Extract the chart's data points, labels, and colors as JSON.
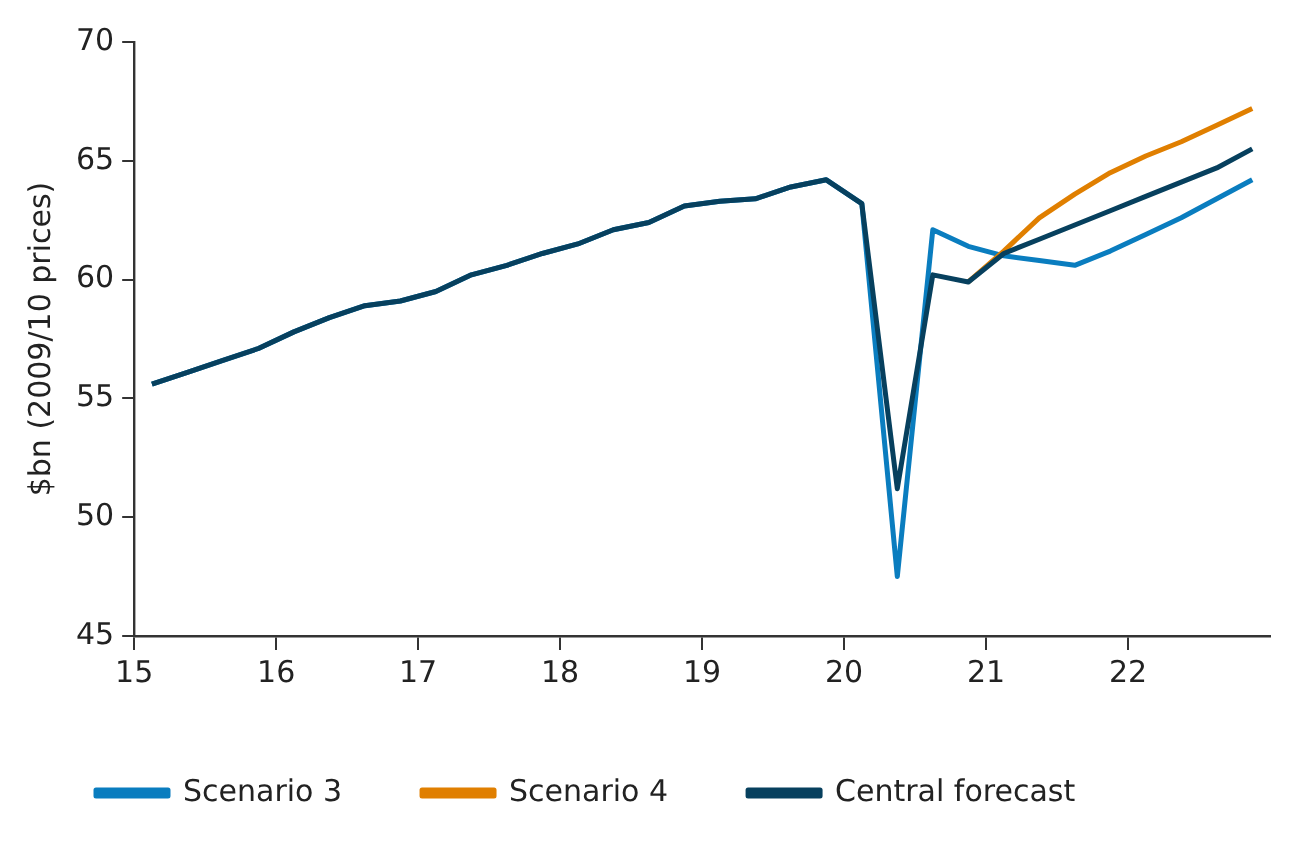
{
  "chart_data": {
    "type": "line",
    "ylabel": "$bn (2009/10 prices)",
    "x": [
      15.125,
      15.375,
      15.625,
      15.875,
      16.125,
      16.375,
      16.625,
      16.875,
      17.125,
      17.375,
      17.625,
      17.875,
      18.125,
      18.375,
      18.625,
      18.875,
      19.125,
      19.375,
      19.625,
      19.875,
      20.125,
      20.375,
      20.625,
      20.875,
      21.125,
      21.375,
      21.625,
      21.875,
      22.125,
      22.375,
      22.625,
      22.875
    ],
    "series": [
      {
        "name": "Scenario 3",
        "color": "#0a7dbf",
        "values": [
          55.6,
          56.1,
          56.6,
          57.1,
          57.8,
          58.4,
          58.9,
          59.1,
          59.5,
          60.2,
          60.6,
          61.1,
          61.5,
          62.1,
          62.4,
          63.1,
          63.3,
          63.4,
          63.9,
          64.2,
          63.2,
          47.5,
          62.1,
          61.4,
          61.0,
          60.8,
          60.6,
          61.2,
          61.9,
          62.6,
          63.4,
          64.2
        ]
      },
      {
        "name": "Scenario 4",
        "color": "#e07f00",
        "values": [
          null,
          null,
          null,
          null,
          null,
          null,
          null,
          null,
          null,
          null,
          null,
          null,
          null,
          null,
          null,
          null,
          null,
          null,
          null,
          null,
          null,
          null,
          null,
          59.9,
          61.2,
          62.6,
          63.6,
          64.5,
          65.2,
          65.8,
          66.5,
          67.2
        ]
      },
      {
        "name": "Central forecast",
        "color": "#07405e",
        "values": [
          55.6,
          56.1,
          56.6,
          57.1,
          57.8,
          58.4,
          58.9,
          59.1,
          59.5,
          60.2,
          60.6,
          61.1,
          61.5,
          62.1,
          62.4,
          63.1,
          63.3,
          63.4,
          63.9,
          64.2,
          63.2,
          51.2,
          60.2,
          59.9,
          61.1,
          61.7,
          62.3,
          62.9,
          63.5,
          64.1,
          64.7,
          65.5
        ]
      }
    ],
    "xlim": [
      15,
      23
    ],
    "xticks": [
      15,
      16,
      17,
      18,
      19,
      20,
      21,
      22
    ],
    "ylim": [
      45,
      70
    ],
    "yticks": [
      45,
      50,
      55,
      60,
      65,
      70
    ],
    "grid": false,
    "legend": "bottom",
    "marker": "none",
    "line_style": "solid"
  }
}
